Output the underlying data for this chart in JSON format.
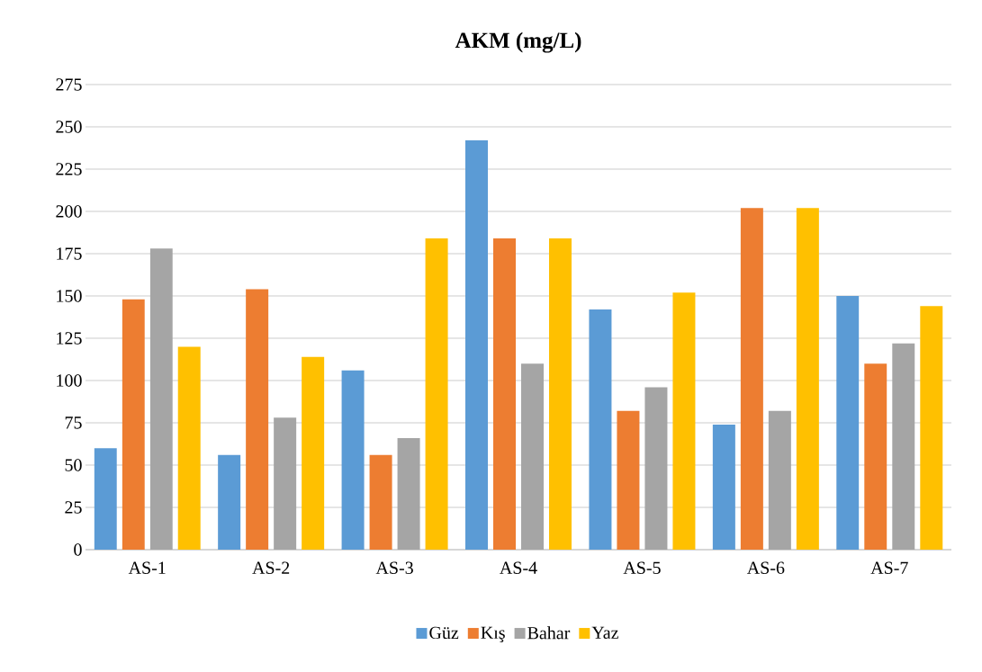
{
  "chart_data": {
    "type": "bar",
    "title": "AKM (mg/L)",
    "categories": [
      "AS-1",
      "AS-2",
      "AS-3",
      "AS-4",
      "AS-5",
      "AS-6",
      "AS-7"
    ],
    "series": [
      {
        "name": "Güz",
        "color": "#5b9bd5",
        "values": [
          60,
          56,
          106,
          242,
          142,
          74,
          150
        ]
      },
      {
        "name": "Kış",
        "color": "#ed7d31",
        "values": [
          148,
          154,
          56,
          184,
          82,
          202,
          110
        ]
      },
      {
        "name": "Bahar",
        "color": "#a5a5a5",
        "values": [
          178,
          78,
          66,
          110,
          96,
          82,
          122
        ]
      },
      {
        "name": "Yaz",
        "color": "#ffc000",
        "values": [
          120,
          114,
          184,
          184,
          152,
          202,
          144
        ]
      }
    ],
    "ylim": [
      0,
      275
    ],
    "yticks": [
      0,
      25,
      50,
      75,
      100,
      125,
      150,
      175,
      200,
      225,
      250,
      275
    ],
    "grid": "y",
    "legend": "bottom"
  }
}
